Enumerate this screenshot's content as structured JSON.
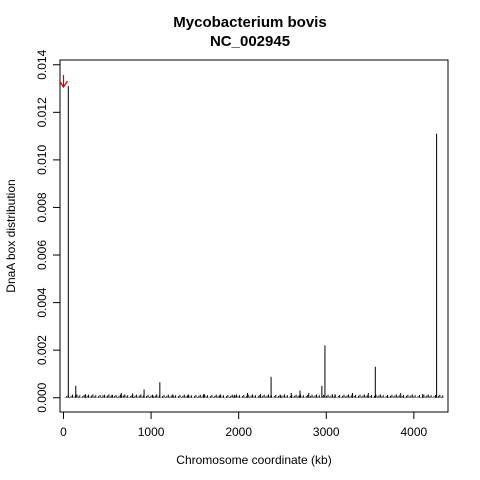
{
  "chart_data": {
    "type": "bar",
    "title": "Mycobacterium bovis",
    "subtitle": "NC_002945",
    "xlabel": "Chromosome coordinate (kb)",
    "ylabel": "DnaA box distribution",
    "xlim": [
      -40,
      4390
    ],
    "ylim": [
      -0.0006,
      0.0142
    ],
    "x_ticks": [
      0,
      1000,
      2000,
      3000,
      4000
    ],
    "y_ticks": [
      0.0,
      0.002,
      0.004,
      0.006,
      0.008,
      0.01,
      0.012,
      0.014
    ],
    "y_tick_labels": [
      "0.000",
      "0.002",
      "0.004",
      "0.006",
      "0.008",
      "0.010",
      "0.012",
      "0.014"
    ],
    "grid": false,
    "arrow_color": "#cc0000",
    "arrow_x": 0,
    "bar_color": "#000000",
    "spikes": [
      {
        "x": 55,
        "value": 0.0131
      },
      {
        "x": 140,
        "value": 0.0005
      },
      {
        "x": 250,
        "value": 0.00015
      },
      {
        "x": 450,
        "value": 0.0001
      },
      {
        "x": 560,
        "value": 0.00012
      },
      {
        "x": 660,
        "value": 0.0002
      },
      {
        "x": 790,
        "value": 0.00018
      },
      {
        "x": 920,
        "value": 0.00035
      },
      {
        "x": 1020,
        "value": 0.0001
      },
      {
        "x": 1100,
        "value": 0.00065
      },
      {
        "x": 1250,
        "value": 0.00012
      },
      {
        "x": 1420,
        "value": 0.0001
      },
      {
        "x": 1600,
        "value": 0.00015
      },
      {
        "x": 1780,
        "value": 0.0001
      },
      {
        "x": 1950,
        "value": 0.00012
      },
      {
        "x": 2100,
        "value": 0.0002
      },
      {
        "x": 2250,
        "value": 0.00015
      },
      {
        "x": 2370,
        "value": 0.00088
      },
      {
        "x": 2480,
        "value": 0.0001
      },
      {
        "x": 2600,
        "value": 0.0002
      },
      {
        "x": 2700,
        "value": 0.0003
      },
      {
        "x": 2800,
        "value": 0.0002
      },
      {
        "x": 2950,
        "value": 0.0005
      },
      {
        "x": 2985,
        "value": 0.0022
      },
      {
        "x": 3100,
        "value": 0.00015
      },
      {
        "x": 3300,
        "value": 0.0002
      },
      {
        "x": 3480,
        "value": 0.0002
      },
      {
        "x": 3560,
        "value": 0.0013
      },
      {
        "x": 3700,
        "value": 0.00012
      },
      {
        "x": 3850,
        "value": 0.0002
      },
      {
        "x": 4100,
        "value": 0.00015
      },
      {
        "x": 4260,
        "value": 0.0111
      },
      {
        "x": 4330,
        "value": 0.0001
      }
    ]
  }
}
